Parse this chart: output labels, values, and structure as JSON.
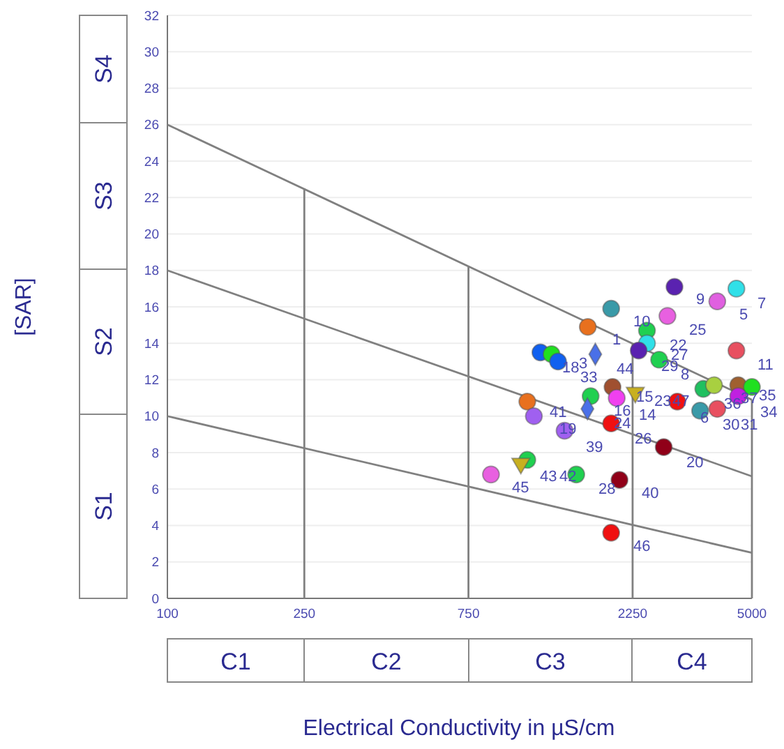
{
  "chart_data": {
    "type": "scatter",
    "xlabel": "Electrical Conductivity in µS/cm",
    "ylabel": "[SAR]",
    "log": "x",
    "xlim": [
      100,
      5000
    ],
    "xticks": [
      100,
      250,
      750,
      2250,
      5000
    ],
    "ylim": [
      0,
      32
    ],
    "yticks": [
      0,
      2,
      4,
      6,
      8,
      10,
      12,
      14,
      16,
      18,
      20,
      22,
      24,
      26,
      28,
      30,
      32
    ],
    "grid": "y",
    "series": [
      {
        "type": "scatter",
        "marker": "circle",
        "x": [
          2978,
          1949,
          1667,
          2841,
          3965,
          4507,
          2477,
          2477,
          2343,
          2687,
          4507,
          1214,
          1308,
          1366,
          1967,
          1699,
          2023,
          3034,
          3611,
          3880,
          4563,
          5000,
          4563,
          3535,
          3965,
          1112,
          1162,
          1427,
          1949,
          2771,
          1112,
          872,
          1543,
          2061,
          1949
        ],
        "values": [
          17.1,
          15.9,
          14.9,
          15.5,
          16.3,
          17.0,
          14.7,
          14.0,
          13.6,
          13.1,
          13.6,
          13.5,
          13.4,
          13.0,
          11.6,
          11.1,
          11.0,
          10.8,
          11.5,
          11.7,
          11.7,
          11.6,
          11.1,
          10.3,
          10.4,
          10.8,
          10.0,
          9.2,
          9.6,
          8.3,
          7.6,
          6.8,
          6.8,
          6.5,
          3.6
        ],
        "colors": [
          "#5a22b0",
          "#3a9aa8",
          "#e8701e",
          "#e860e0",
          "#e060e0",
          "#30e0e8",
          "#20d050",
          "#30e0e8",
          "#5a22b0",
          "#20d050",
          "#e85060",
          "#1060f0",
          "#20e020",
          "#1060f0",
          "#a05030",
          "#20d050",
          "#f040f0",
          "#f01010",
          "#20c060",
          "#a8d040",
          "#a06030",
          "#20e020",
          "#c020e0",
          "#3a9aa8",
          "#e85060",
          "#e8701e",
          "#a060f0",
          "#a060f0",
          "#f01010",
          "#900018",
          "#20d050",
          "#e860e0",
          "#20d050",
          "#900018",
          "#f01010"
        ]
      },
      {
        "type": "scatter",
        "marker": "diamond",
        "x": [
          1753,
          1663
        ],
        "values": [
          13.4,
          10.4
        ],
        "colors": [
          "#4a70e8",
          "#4a70e8"
        ]
      },
      {
        "type": "scatter",
        "marker": "triangle",
        "x": [
          2291,
          1065
        ],
        "values": [
          11.3,
          7.4
        ],
        "colors": [
          "#c8b020",
          "#c8b020"
        ]
      },
      {
        "type": "line",
        "color": "#808080",
        "x": [
          100,
          5000
        ],
        "values": [
          26,
          10.9
        ]
      },
      {
        "type": "line",
        "color": "#808080",
        "x": [
          100,
          5000
        ],
        "values": [
          18,
          6.7
        ]
      },
      {
        "type": "line",
        "color": "#808080",
        "x": [
          100,
          5000
        ],
        "values": [
          10,
          2.5
        ]
      },
      {
        "type": "line",
        "color": "#808080",
        "x": [
          250,
          250
        ],
        "values": [
          0,
          22.5
        ]
      },
      {
        "type": "line",
        "color": "#808080",
        "x": [
          750,
          750
        ],
        "values": [
          0,
          18.2
        ]
      },
      {
        "type": "line",
        "color": "#808080",
        "x": [
          2250,
          2250
        ],
        "values": [
          0,
          14.0
        ]
      },
      {
        "type": "line",
        "color": "#808080",
        "x": [
          5000,
          5000
        ],
        "values": [
          0,
          10.9
        ]
      }
    ],
    "annotations": [
      "S4",
      "S3",
      "S2",
      "S1",
      "C1",
      "C2",
      "C3",
      "C4",
      "9",
      "7",
      "5",
      "10",
      "25",
      "1",
      "22",
      "27",
      "11",
      "18",
      "3",
      "33",
      "44",
      "29",
      "8",
      "15",
      "14",
      "23",
      "47",
      "36",
      "37",
      "35",
      "34",
      "30",
      "31",
      "6",
      "16",
      "41",
      "24",
      "19",
      "39",
      "26",
      "20",
      "43",
      "42",
      "45",
      "28",
      "40",
      "46"
    ]
  }
}
